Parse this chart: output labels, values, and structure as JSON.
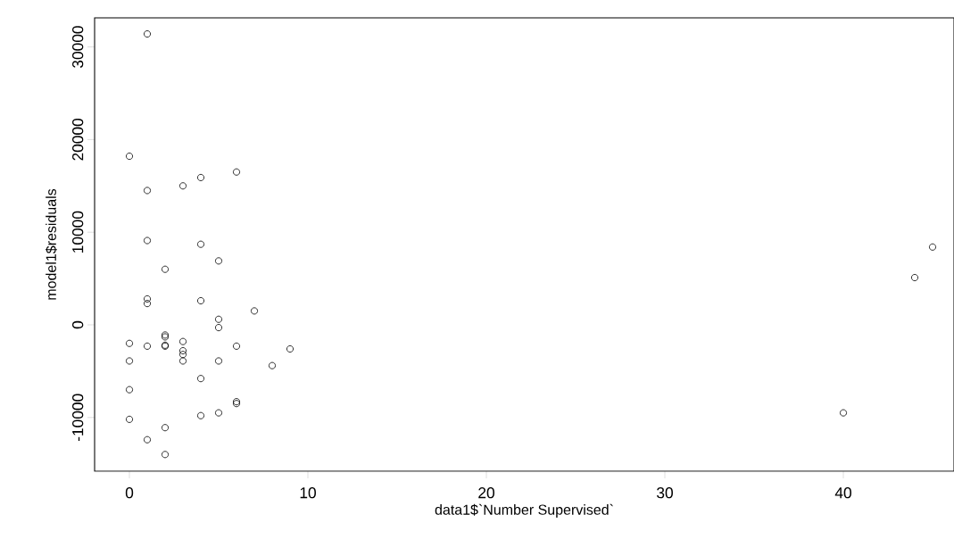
{
  "chart_data": {
    "type": "scatter",
    "xlabel": "data1$`Number Supervised`",
    "ylabel": "model1$residuals",
    "xlim": [
      -1.95,
      46.2
    ],
    "ylim": [
      -15800,
      33140
    ],
    "xticks": [
      0,
      10,
      20,
      30,
      40
    ],
    "yticks": [
      -10000,
      0,
      10000,
      20000,
      30000
    ],
    "marker": "circle",
    "series": [
      {
        "color": "#000000",
        "x": [
          1,
          0,
          1,
          3,
          4,
          6,
          1,
          4,
          5,
          2,
          1,
          1,
          4,
          7,
          5,
          5,
          0,
          1,
          2,
          2,
          2,
          2,
          3,
          3,
          3,
          3,
          6,
          9,
          0,
          5,
          8,
          4,
          0,
          6,
          6,
          4,
          5,
          0,
          2,
          1,
          2,
          40,
          44,
          45
        ],
        "values": [
          31400,
          18200,
          14500,
          15000,
          15900,
          16500,
          9100,
          8700,
          6900,
          6000,
          2800,
          2300,
          2600,
          1500,
          600,
          -300,
          -2000,
          -2300,
          -1100,
          -1300,
          -2200,
          -2300,
          -1800,
          -2800,
          -3200,
          -3900,
          -2300,
          -2600,
          -3900,
          -3900,
          -4400,
          -5800,
          -7000,
          -8300,
          -8500,
          -9800,
          -9500,
          -10200,
          -11100,
          -12400,
          -14000,
          -9500,
          5100,
          8400
        ]
      }
    ]
  }
}
